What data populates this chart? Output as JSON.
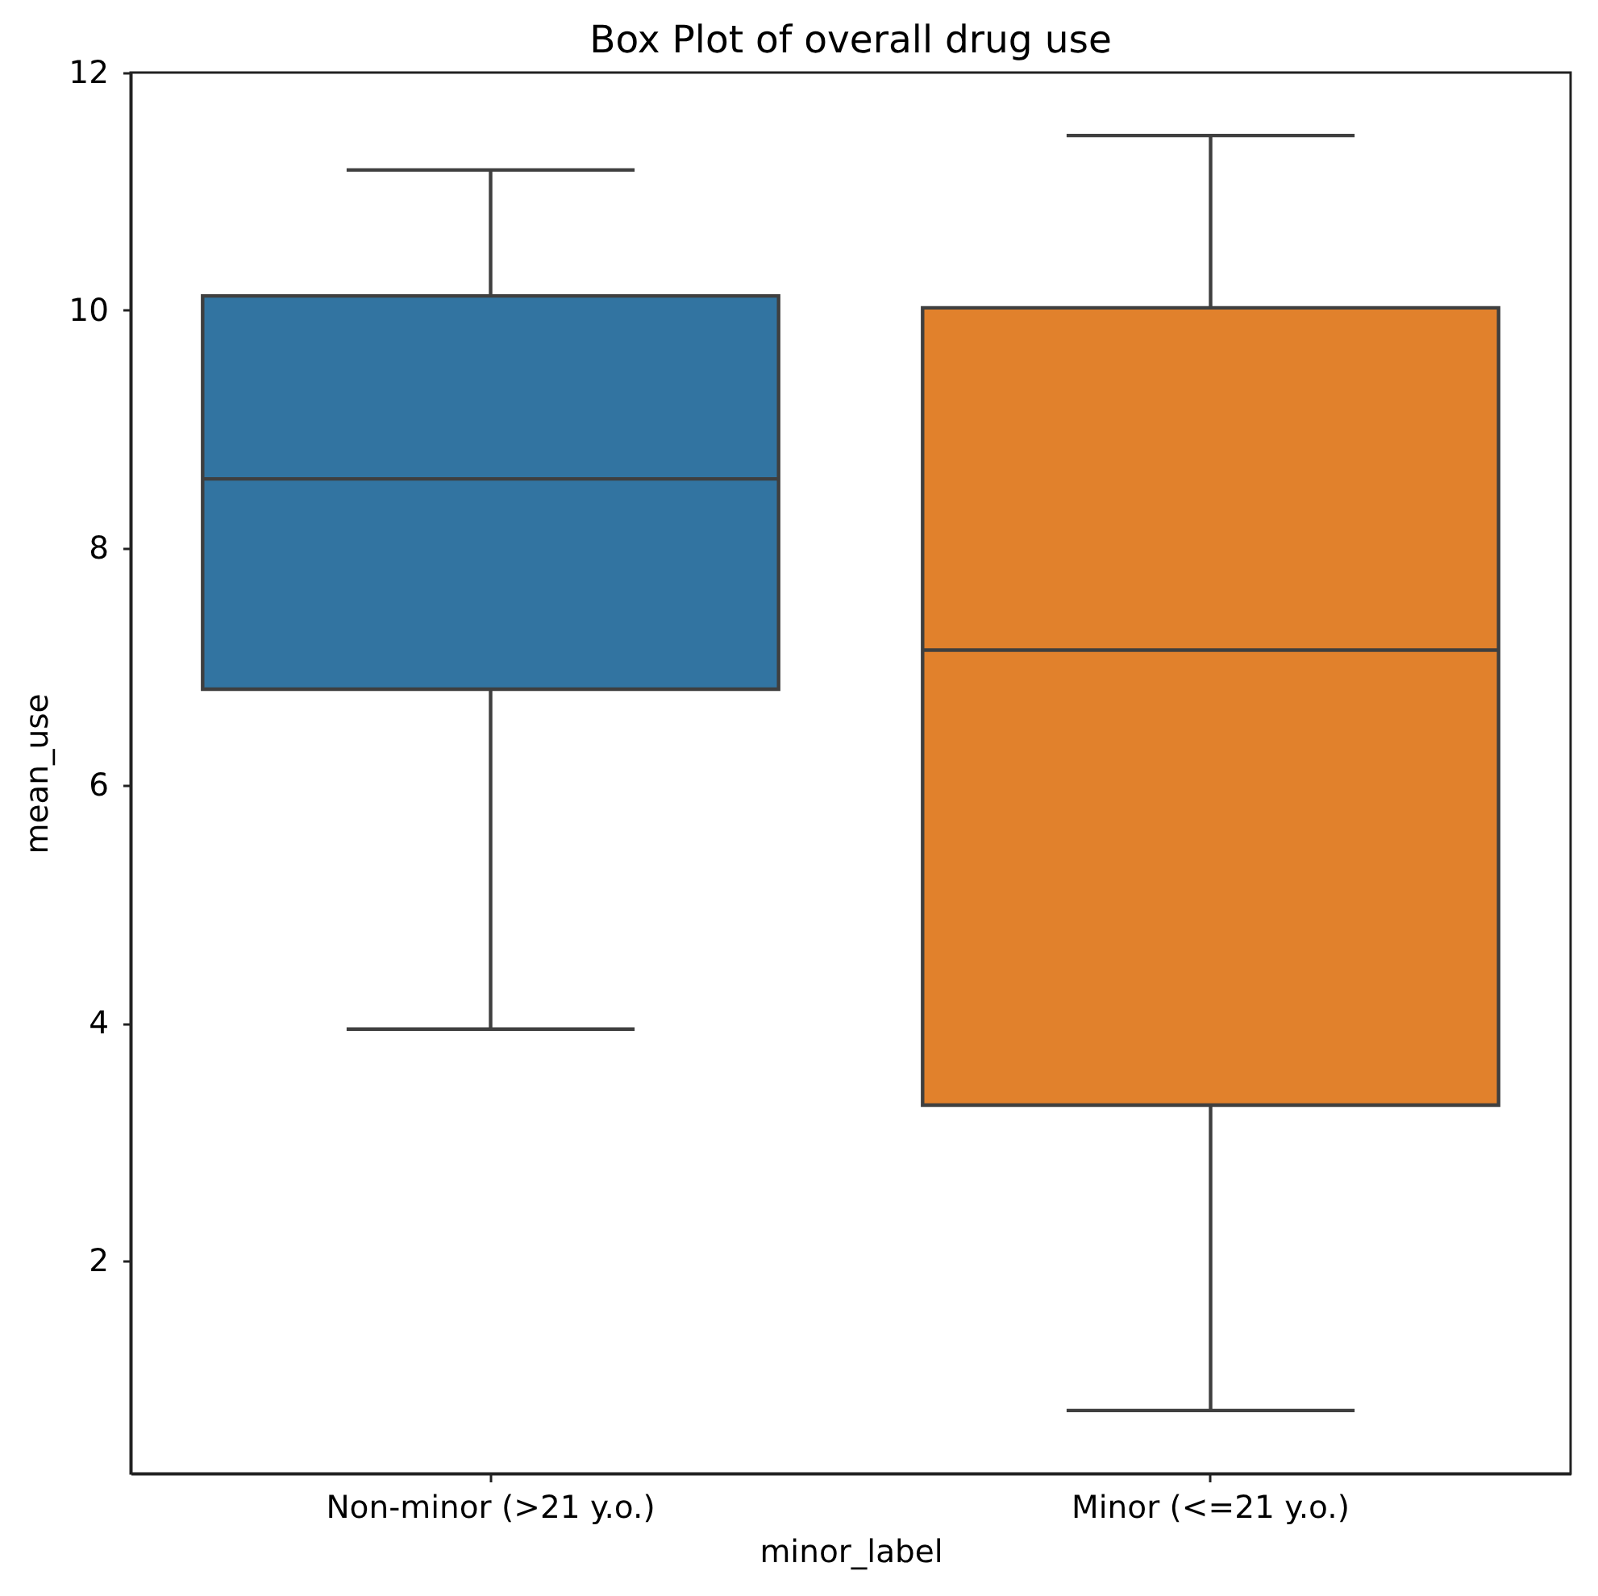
{
  "chart_data": {
    "type": "box",
    "title": "Box Plot of overall drug use",
    "xlabel": "minor_label",
    "ylabel": "mean_use",
    "categories": [
      "Non-minor (>21 y.o.)",
      "Minor (<=21 y.o.)"
    ],
    "boxes": [
      {
        "low": 3.95,
        "q1": 6.81,
        "median": 8.58,
        "q3": 10.12,
        "high": 11.18
      },
      {
        "low": 0.74,
        "q1": 3.31,
        "median": 7.14,
        "q3": 10.02,
        "high": 11.47
      }
    ],
    "colors": [
      "#3274a1",
      "#e1812c"
    ],
    "ylim": [
      0.21,
      12
    ],
    "yticks": [
      2,
      4,
      6,
      8,
      10,
      12
    ]
  }
}
